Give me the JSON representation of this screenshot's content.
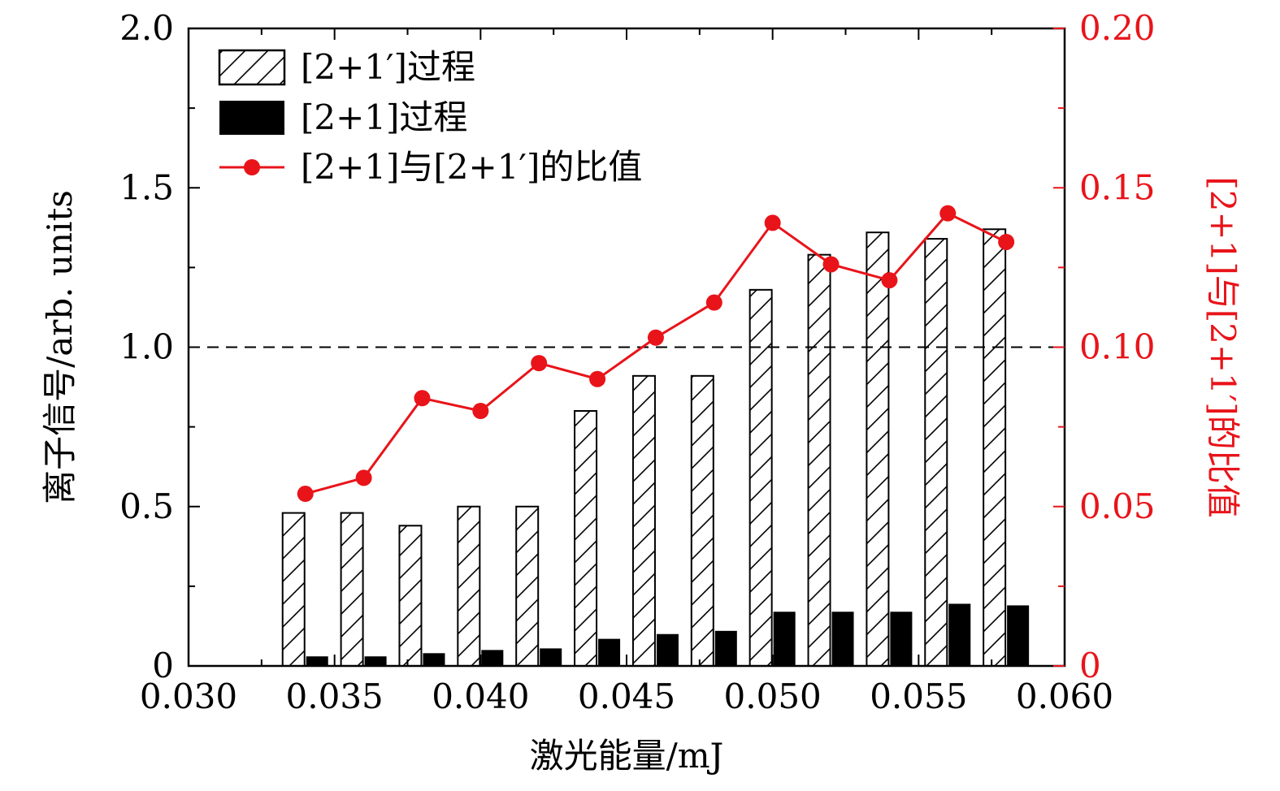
{
  "chart_data": {
    "type": "bar",
    "x_axis": {
      "label": "激光能量/mJ",
      "range": [
        0.03,
        0.06
      ],
      "ticks": [
        "0.030",
        "0.035",
        "0.040",
        "0.045",
        "0.050",
        "0.055",
        "0.060"
      ]
    },
    "y_axis_left": {
      "label": "离子信号/arb. units",
      "range": [
        0,
        2.0
      ],
      "ticks": [
        "0",
        "0.5",
        "1.0",
        "1.5",
        "2.0"
      ]
    },
    "y_axis_right": {
      "label": "[2+1]与[2+1′]的比值",
      "range": [
        0,
        0.2
      ],
      "ticks": [
        "0",
        "0.05",
        "0.10",
        "0.15",
        "0.20"
      ],
      "color": "#e8141a"
    },
    "reference_line": {
      "y": 1.0,
      "style": "dashed"
    },
    "x": [
      0.034,
      0.036,
      0.038,
      0.04,
      0.042,
      0.044,
      0.046,
      0.048,
      0.05,
      0.052,
      0.054,
      0.056,
      0.058
    ],
    "series": [
      {
        "name": "[2+1′]过程",
        "kind": "bar",
        "pattern": "hatched",
        "axis": "left",
        "values": [
          0.48,
          0.48,
          0.44,
          0.5,
          0.5,
          0.8,
          0.91,
          0.91,
          1.18,
          1.29,
          1.36,
          1.34,
          1.37
        ]
      },
      {
        "name": "[2+1]过程",
        "kind": "bar",
        "pattern": "solid",
        "color": "#000000",
        "axis": "left",
        "values": [
          0.03,
          0.03,
          0.04,
          0.05,
          0.055,
          0.085,
          0.1,
          0.11,
          0.17,
          0.17,
          0.17,
          0.195,
          0.19
        ]
      },
      {
        "name": "[2+1]与[2+1′]的比值",
        "kind": "line",
        "marker": "circle",
        "color": "#e8141a",
        "axis": "right",
        "values": [
          0.054,
          0.059,
          0.084,
          0.08,
          0.095,
          0.09,
          0.103,
          0.114,
          0.139,
          0.126,
          0.121,
          0.142,
          0.133
        ]
      }
    ],
    "legend_position": "top-left",
    "grid": false
  }
}
